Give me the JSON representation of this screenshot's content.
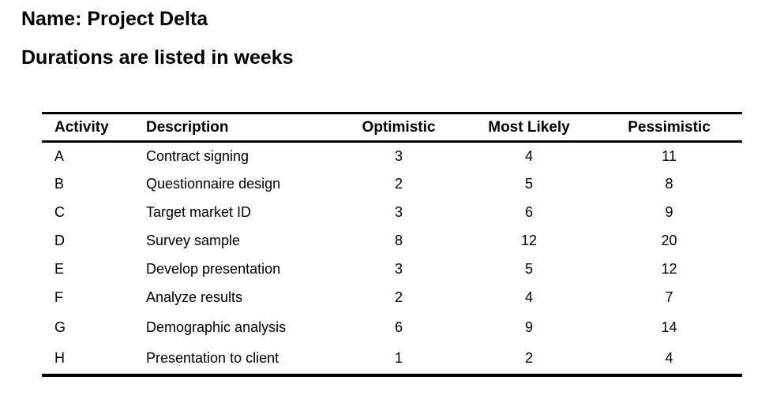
{
  "page": {
    "title": "Name: Project Delta",
    "subtitle": "Durations are listed in weeks"
  },
  "table": {
    "columns": [
      "Activity",
      "Description",
      "Optimistic",
      "Most Likely",
      "Pessimistic"
    ],
    "rows": [
      {
        "activity": "A",
        "description": "Contract signing",
        "optimistic": "3",
        "most_likely": "4",
        "pessimistic": "11"
      },
      {
        "activity": "B",
        "description": "Questionnaire design",
        "optimistic": "2",
        "most_likely": "5",
        "pessimistic": "8"
      },
      {
        "activity": "C",
        "description": "Target market ID",
        "optimistic": "3",
        "most_likely": "6",
        "pessimistic": "9"
      },
      {
        "activity": "D",
        "description": "Survey sample",
        "optimistic": "8",
        "most_likely": "12",
        "pessimistic": "20"
      },
      {
        "activity": "E",
        "description": "Develop presentation",
        "optimistic": "3",
        "most_likely": "5",
        "pessimistic": "12"
      },
      {
        "activity": "F",
        "description": "Analyze results",
        "optimistic": "2",
        "most_likely": "4",
        "pessimistic": "7"
      },
      {
        "activity": "G",
        "description": "Demographic analysis",
        "optimistic": "6",
        "most_likely": "9",
        "pessimistic": "14"
      },
      {
        "activity": "H",
        "description": "Presentation to client",
        "optimistic": "1",
        "most_likely": "2",
        "pessimistic": "4"
      }
    ]
  },
  "colors": {
    "text": "#000000",
    "background": "#ffffff",
    "border": "#000000"
  }
}
